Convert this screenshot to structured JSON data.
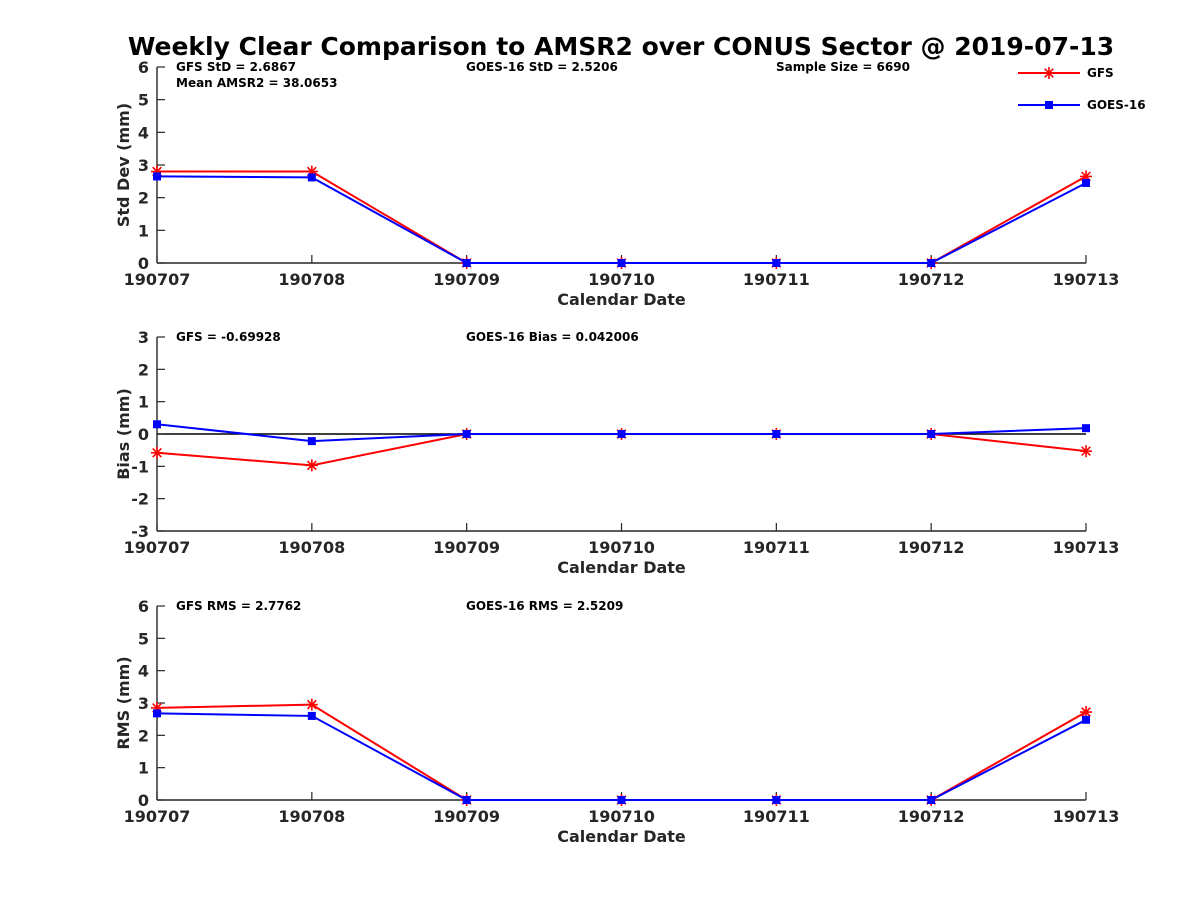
{
  "chart_data": {
    "title": "Weekly Clear Comparison to AMSR2 over CONUS Sector @ 2019-07-13",
    "type": "line",
    "legend": {
      "placement": "top-right",
      "entries": [
        {
          "name": "GFS",
          "color": "#ff0000",
          "marker": "asterisk"
        },
        {
          "name": "GOES-16",
          "color": "#0000ff",
          "marker": "square"
        }
      ]
    },
    "panels": [
      {
        "id": "std",
        "type": "line",
        "xlabel": "Calendar Date",
        "ylabel": "Std Dev (mm)",
        "ylim": [
          0,
          6
        ],
        "yticks": [
          0,
          1,
          2,
          3,
          4,
          5,
          6
        ],
        "categories": [
          "190707",
          "190708",
          "190709",
          "190710",
          "190711",
          "190712",
          "190713"
        ],
        "zero_line": false,
        "grid": false,
        "annotations": [
          {
            "text": "GFS StD = 2.6867",
            "pos": "left-top"
          },
          {
            "text": "Mean AMSR2 = 38.0653",
            "pos": "left-second"
          },
          {
            "text": "GOES-16 StD = 2.5206",
            "pos": "middle-top"
          },
          {
            "text": "Sample Size = 6690",
            "pos": "right-top"
          }
        ],
        "series": [
          {
            "name": "GFS",
            "color": "#ff0000",
            "marker": "asterisk",
            "values": [
              2.8,
              2.8,
              0,
              0,
              0,
              0,
              2.65
            ]
          },
          {
            "name": "GOES-16",
            "color": "#0000ff",
            "marker": "square",
            "values": [
              2.65,
              2.62,
              0,
              0,
              0,
              0,
              2.45
            ]
          }
        ]
      },
      {
        "id": "bias",
        "type": "line",
        "xlabel": "Calendar Date",
        "ylabel": "Bias (mm)",
        "ylim": [
          -3,
          3
        ],
        "yticks": [
          -3,
          -2,
          -1,
          0,
          1,
          2,
          3
        ],
        "categories": [
          "190707",
          "190708",
          "190709",
          "190710",
          "190711",
          "190712",
          "190713"
        ],
        "zero_line": true,
        "grid": false,
        "annotations": [
          {
            "text": "GFS = -0.69928",
            "pos": "left-top"
          },
          {
            "text": "GOES-16 Bias  = 0.042006",
            "pos": "middle-top"
          }
        ],
        "series": [
          {
            "name": "GFS",
            "color": "#ff0000",
            "marker": "asterisk",
            "values": [
              -0.58,
              -0.97,
              0,
              0,
              0,
              0,
              -0.53
            ]
          },
          {
            "name": "GOES-16",
            "color": "#0000ff",
            "marker": "square",
            "values": [
              0.3,
              -0.22,
              0,
              0,
              0,
              0,
              0.18
            ]
          }
        ]
      },
      {
        "id": "rms",
        "type": "line",
        "xlabel": "Calendar Date",
        "ylabel": "RMS (mm)",
        "ylim": [
          0,
          6
        ],
        "yticks": [
          0,
          1,
          2,
          3,
          4,
          5,
          6
        ],
        "categories": [
          "190707",
          "190708",
          "190709",
          "190710",
          "190711",
          "190712",
          "190713"
        ],
        "zero_line": false,
        "grid": false,
        "annotations": [
          {
            "text": "GFS RMS = 2.7762",
            "pos": "left-top"
          },
          {
            "text": "GOES-16 RMS = 2.5209",
            "pos": "middle-top"
          }
        ],
        "series": [
          {
            "name": "GFS",
            "color": "#ff0000",
            "marker": "asterisk",
            "values": [
              2.85,
              2.95,
              0,
              0,
              0,
              0,
              2.72
            ]
          },
          {
            "name": "GOES-16",
            "color": "#0000ff",
            "marker": "square",
            "values": [
              2.68,
              2.6,
              0,
              0,
              0,
              0,
              2.48
            ]
          }
        ]
      }
    ]
  }
}
